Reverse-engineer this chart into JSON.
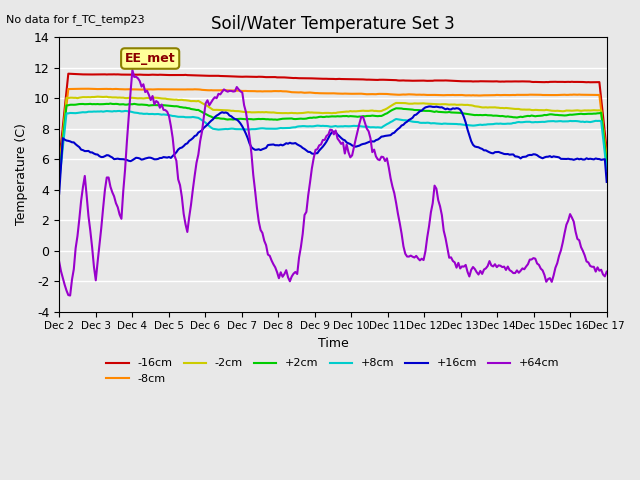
{
  "title": "Soil/Water Temperature Set 3",
  "top_left_note": "No data for f_TC_temp23",
  "xlabel": "Time",
  "ylabel": "Temperature (C)",
  "ylim": [
    -4,
    14
  ],
  "xlim": [
    0,
    15
  ],
  "xtick_labels": [
    "Dec 2",
    "Dec 3",
    "Dec 4",
    "Dec 5",
    "Dec 6",
    "Dec 7",
    "Dec 8",
    "Dec 9",
    "Dec 10",
    "Dec 11",
    "Dec 12",
    "Dec 13",
    "Dec 14",
    "Dec 15",
    "Dec 16",
    "Dec 17"
  ],
  "ytick_values": [
    -4,
    -2,
    0,
    2,
    4,
    6,
    8,
    10,
    12,
    14
  ],
  "background_color": "#e8e8e8",
  "legend_box_label": "EE_met",
  "legend_box_color": "#ffff99",
  "legend_box_border": "#8b8000",
  "series": {
    "-16cm": {
      "color": "#cc0000",
      "lw": 1.5
    },
    "-8cm": {
      "color": "#ff8800",
      "lw": 1.5
    },
    "-2cm": {
      "color": "#cccc00",
      "lw": 1.5
    },
    "+2cm": {
      "color": "#00cc00",
      "lw": 1.5
    },
    "+8cm": {
      "color": "#00cccc",
      "lw": 1.5
    },
    "+16cm": {
      "color": "#0000cc",
      "lw": 1.5
    },
    "+64cm": {
      "color": "#9900cc",
      "lw": 1.5
    }
  },
  "key_x_16": [
    0,
    1,
    2,
    3,
    4,
    4.5,
    5,
    5.3,
    5.8,
    6.5,
    7.0,
    7.5,
    8.0,
    9.0,
    10.0,
    11.0,
    11.3,
    11.8,
    12.5,
    15.0
  ],
  "key_y_16": [
    7.5,
    6.2,
    6.0,
    6.1,
    8.2,
    9.3,
    8.2,
    6.5,
    6.9,
    7.0,
    6.2,
    7.8,
    6.8,
    7.5,
    9.4,
    9.3,
    6.8,
    6.5,
    6.2,
    6.0
  ],
  "key_x_64": [
    0,
    0.3,
    0.7,
    1.0,
    1.3,
    1.7,
    2.0,
    2.5,
    3.0,
    3.5,
    4.0,
    4.5,
    5.0,
    5.2,
    5.5,
    6.0,
    6.5,
    7.0,
    7.5,
    8.0,
    8.3,
    8.7,
    9.0,
    9.5,
    10.0,
    10.3,
    10.7,
    11.0,
    11.5,
    12.0,
    12.5,
    13.0,
    13.5,
    14.0,
    14.5,
    15.0
  ],
  "key_y_64": [
    -1,
    -3,
    5,
    -2,
    5,
    2,
    11.9,
    10,
    9,
    1.2,
    9.5,
    10.5,
    10.5,
    7.8,
    1.2,
    -1.5,
    -1.7,
    6.5,
    8,
    6.0,
    9,
    6.0,
    6.0,
    -0.5,
    -0.5,
    4.5,
    -0.5,
    -1.0,
    -1.5,
    -0.8,
    -1.5,
    -0.5,
    -2.2,
    2.5,
    -1.0,
    -1.5
  ]
}
